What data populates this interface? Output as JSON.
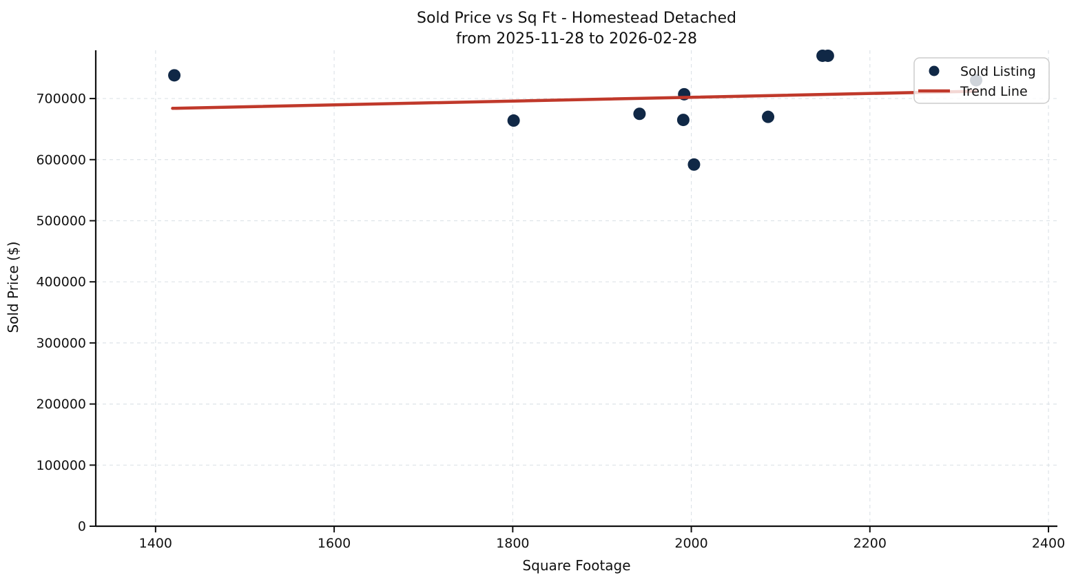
{
  "chart_data": {
    "type": "scatter",
    "title": "Sold Price vs Sq Ft - Homestead Detached",
    "subtitle": "from 2025-11-28 to 2026-02-28",
    "xlabel": "Square Footage",
    "ylabel": "Sold Price ($)",
    "xlim": [
      1333,
      2410
    ],
    "ylim": [
      0,
      779000
    ],
    "x_ticks": [
      1400,
      1600,
      1800,
      2000,
      2200,
      2400
    ],
    "y_ticks": [
      0,
      100000,
      200000,
      300000,
      400000,
      500000,
      600000,
      700000
    ],
    "grid": true,
    "grid_style": "dashed",
    "colors": {
      "background": "#ffffff",
      "grid": "#dde3e8",
      "axis": "#111111",
      "text": "#111111",
      "scatter": "#102846",
      "trend": "#c0392b",
      "legend_border": "#cccccc"
    },
    "legend": {
      "position": "upper right",
      "frame_alpha": 0.8,
      "entries": [
        {
          "label": "Sold Listing",
          "marker": "dot",
          "color": "#102846"
        },
        {
          "label": "Trend Line",
          "marker": "line",
          "color": "#c0392b"
        }
      ]
    },
    "series": [
      {
        "name": "Sold Listing",
        "type": "scatter",
        "color": "#102846",
        "points": [
          [
            1421,
            738000
          ],
          [
            1801,
            664000
          ],
          [
            1942,
            675000
          ],
          [
            1991,
            665000
          ],
          [
            1992,
            707000
          ],
          [
            2003,
            592000
          ],
          [
            2086,
            670000
          ],
          [
            2147,
            770000
          ],
          [
            2153,
            770000
          ],
          [
            2319,
            730000
          ]
        ]
      },
      {
        "name": "Trend Line",
        "type": "line",
        "color": "#c0392b",
        "points": [
          [
            1419,
            684000
          ],
          [
            2319,
            712000
          ]
        ]
      }
    ]
  }
}
